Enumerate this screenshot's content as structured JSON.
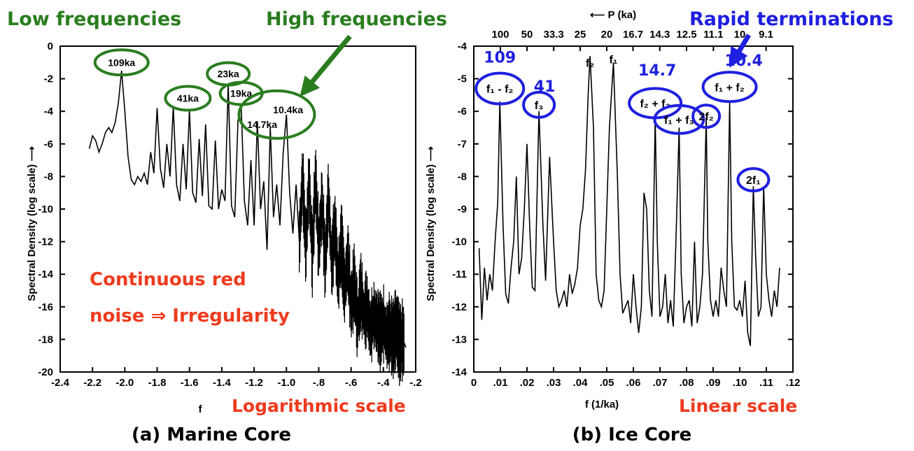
{
  "annotations": {
    "low_frequencies": "Low frequencies",
    "high_frequencies": "High frequencies",
    "rapid_terminations": "Rapid terminations",
    "continuous_red_1": "Continuous red",
    "continuous_red_2": "noise ⇒ Irregularity",
    "log_scale": "Logarithmic scale",
    "linear_scale": "Linear scale",
    "caption_a": "(a) Marine Core",
    "caption_b": "(b) Ice Core",
    "colors": {
      "green": "#2a7d1f",
      "blue": "#1f1fe0",
      "red": "#ee3b1e"
    }
  },
  "chart_data": [
    {
      "type": "line",
      "xlabel": "f",
      "ylabel": "Spectral Density (log scale) ⟶",
      "xlim": [
        -2.4,
        -0.2
      ],
      "ylim": [
        -20,
        0
      ],
      "x_ticks": [
        "-2.4",
        "-2.2",
        "-2.0",
        "-1.8",
        "-1.6",
        "-1.4",
        "-1.2",
        "-1.0",
        "-.8",
        "-.6",
        "-.4",
        "-.2"
      ],
      "y_ticks": [
        "0",
        "-2",
        "-4",
        "-6",
        "-8",
        "-10",
        "-12",
        "-14",
        "-16",
        "-18",
        "-20"
      ],
      "peak_labels": [
        {
          "text": "109ka",
          "x": -2.02,
          "y": -1.5
        },
        {
          "text": "41ka",
          "x": -1.61,
          "y": -3.9
        },
        {
          "text": "23ka",
          "x": -1.36,
          "y": -2.3
        },
        {
          "text": "19ka",
          "x": -1.28,
          "y": -3.6
        },
        {
          "text": "14.7ka",
          "x": -1.15,
          "y": -4.6
        },
        {
          "text": "10.4ka",
          "x": -0.99,
          "y": -4.0
        }
      ],
      "x": [
        -2.22,
        -2.2,
        -2.18,
        -2.16,
        -2.14,
        -2.12,
        -2.1,
        -2.08,
        -2.06,
        -2.04,
        -2.02,
        -2.0,
        -1.98,
        -1.96,
        -1.94,
        -1.92,
        -1.9,
        -1.88,
        -1.86,
        -1.84,
        -1.82,
        -1.8,
        -1.78,
        -1.76,
        -1.74,
        -1.72,
        -1.7,
        -1.68,
        -1.66,
        -1.64,
        -1.62,
        -1.6,
        -1.58,
        -1.56,
        -1.54,
        -1.52,
        -1.5,
        -1.48,
        -1.46,
        -1.44,
        -1.42,
        -1.4,
        -1.38,
        -1.36,
        -1.34,
        -1.32,
        -1.3,
        -1.28,
        -1.26,
        -1.24,
        -1.22,
        -1.2,
        -1.18,
        -1.16,
        -1.14,
        -1.12,
        -1.1,
        -1.08,
        -1.06,
        -1.04,
        -1.02,
        -1.0,
        -0.98,
        -0.96,
        -0.94,
        -0.92,
        -0.9,
        -0.88,
        -0.86,
        -0.84,
        -0.82,
        -0.8,
        -0.78,
        -0.76,
        -0.74,
        -0.72,
        -0.7,
        -0.68,
        -0.66,
        -0.64,
        -0.62,
        -0.6,
        -0.58,
        -0.56,
        -0.54,
        -0.52,
        -0.5,
        -0.48,
        -0.46,
        -0.44,
        -0.42,
        -0.4,
        -0.38,
        -0.36,
        -0.34,
        -0.32,
        -0.3,
        -0.28,
        -0.26
      ],
      "y": [
        -6.3,
        -5.5,
        -5.8,
        -6.5,
        -6.0,
        -5.3,
        -5.0,
        -5.3,
        -4.7,
        -3.5,
        -1.5,
        -4.0,
        -6.8,
        -8.2,
        -8.5,
        -8.0,
        -8.3,
        -7.8,
        -8.5,
        -6.5,
        -7.8,
        -3.8,
        -7.5,
        -8.7,
        -6.0,
        -8.0,
        -3.7,
        -8.5,
        -9.5,
        -6.0,
        -8.8,
        -3.9,
        -9.0,
        -9.6,
        -5.7,
        -9.2,
        -4.8,
        -9.8,
        -10.0,
        -5.8,
        -10.0,
        -8.8,
        -9.5,
        -2.3,
        -9.8,
        -10.5,
        -4.6,
        -3.6,
        -9.5,
        -11.0,
        -7.0,
        -11.0,
        -4.6,
        -10.0,
        -8.3,
        -12.5,
        -5.0,
        -10.5,
        -8.5,
        -11.0,
        -6.5,
        -4.2,
        -9.0,
        -11.5,
        -8.5,
        -12.0,
        -8.0,
        -12.5,
        -8.2,
        -13.0,
        -8.0,
        -12.5,
        -9.5,
        -13.5,
        -9.0,
        -13.5,
        -11.0,
        -14.5,
        -12.0,
        -15.0,
        -13.0,
        -16.0,
        -14.5,
        -17.0,
        -15.0,
        -16.5,
        -16.0,
        -17.5,
        -16.5,
        -17.0,
        -17.5,
        -17.0,
        -17.8,
        -17.5,
        -18.0,
        -17.2,
        -18.3,
        -18.0,
        -18.5
      ]
    },
    {
      "type": "line",
      "xlabel": "f (1/ka)",
      "ylabel": "Spectral Density (log scale) ⟶",
      "top_axis_label": "⟵ P (ka)",
      "xlim": [
        0,
        0.12
      ],
      "ylim": [
        -14,
        -4
      ],
      "x_ticks": [
        "0",
        ".01",
        ".02",
        ".03",
        ".04",
        ".05",
        ".06",
        ".07",
        ".08",
        ".09",
        ".10",
        ".11",
        ".12"
      ],
      "y_ticks": [
        "-4",
        "-5",
        "-6",
        "-7",
        "-8",
        "-9",
        "-10",
        "-11",
        "-12",
        "-13",
        "-14"
      ],
      "top_ticks": [
        "100",
        "50",
        "33.3",
        "25",
        "20",
        "16.7",
        "14.3",
        "12.5",
        "11.1",
        "10",
        "9.1"
      ],
      "peak_labels": [
        {
          "text": "f₁ - f₂",
          "x": 0.0098,
          "y": -5.4
        },
        {
          "text": "f₃",
          "x": 0.0245,
          "y": -5.9
        },
        {
          "text": "f₂",
          "x": 0.0437,
          "y": -4.3
        },
        {
          "text": "f₁",
          "x": 0.0525,
          "y": -4.4
        },
        {
          "text": "f₂ + f₃",
          "x": 0.0682,
          "y": -5.8
        },
        {
          "text": "f₁ + f₃",
          "x": 0.0772,
          "y": -6.3
        },
        {
          "text": "2f₂",
          "x": 0.0874,
          "y": -6.2
        },
        {
          "text": "f₁ + f₂",
          "x": 0.0962,
          "y": -5.3
        },
        {
          "text": "2f₁",
          "x": 0.1051,
          "y": -8.2
        }
      ],
      "blue_numbers": [
        {
          "text": "109",
          "x": 0.0098
        },
        {
          "text": "41",
          "x": 0.0245
        },
        {
          "text": "14.7",
          "x": 0.0682
        },
        {
          "text": "10.4",
          "x": 0.0962
        }
      ],
      "x": [
        0.002,
        0.003,
        0.004,
        0.005,
        0.006,
        0.007,
        0.008,
        0.009,
        0.0098,
        0.011,
        0.012,
        0.013,
        0.014,
        0.015,
        0.016,
        0.017,
        0.018,
        0.019,
        0.02,
        0.021,
        0.022,
        0.023,
        0.0245,
        0.026,
        0.027,
        0.0285,
        0.03,
        0.031,
        0.032,
        0.033,
        0.034,
        0.035,
        0.036,
        0.037,
        0.038,
        0.039,
        0.04,
        0.041,
        0.042,
        0.043,
        0.0437,
        0.045,
        0.046,
        0.047,
        0.048,
        0.049,
        0.05,
        0.051,
        0.0525,
        0.054,
        0.055,
        0.056,
        0.057,
        0.058,
        0.059,
        0.06,
        0.061,
        0.062,
        0.063,
        0.064,
        0.065,
        0.066,
        0.067,
        0.0682,
        0.069,
        0.07,
        0.071,
        0.072,
        0.073,
        0.074,
        0.075,
        0.076,
        0.0772,
        0.078,
        0.079,
        0.08,
        0.081,
        0.082,
        0.083,
        0.084,
        0.085,
        0.086,
        0.0874,
        0.088,
        0.089,
        0.09,
        0.091,
        0.092,
        0.093,
        0.094,
        0.095,
        0.0962,
        0.097,
        0.098,
        0.099,
        0.1,
        0.101,
        0.102,
        0.103,
        0.104,
        0.1051,
        0.106,
        0.107,
        0.108,
        0.109,
        0.11,
        0.111,
        0.112,
        0.113,
        0.114,
        0.115
      ],
      "y": [
        -10.2,
        -12.4,
        -10.8,
        -11.8,
        -11.0,
        -11.5,
        -10.0,
        -8.8,
        -5.7,
        -9.5,
        -11.6,
        -11.9,
        -10.8,
        -10.0,
        -8.0,
        -11.0,
        -10.5,
        -9.0,
        -7.0,
        -9.5,
        -11.4,
        -11.5,
        -6.0,
        -9.5,
        -11.2,
        -7.4,
        -10.0,
        -11.5,
        -12.0,
        -11.8,
        -11.5,
        -12.0,
        -11.0,
        -11.6,
        -11.3,
        -10.8,
        -9.5,
        -9.0,
        -7.8,
        -5.5,
        -4.3,
        -6.5,
        -11.0,
        -11.8,
        -12.0,
        -11.5,
        -9.0,
        -6.5,
        -4.5,
        -8.0,
        -11.0,
        -12.2,
        -12.0,
        -11.8,
        -12.5,
        -11.0,
        -12.0,
        -12.8,
        -12.0,
        -8.5,
        -9.0,
        -11.5,
        -12.3,
        -6.2,
        -10.0,
        -12.3,
        -12.0,
        -11.0,
        -12.5,
        -11.8,
        -12.6,
        -10.0,
        -6.5,
        -11.0,
        -12.5,
        -12.0,
        -11.8,
        -12.6,
        -10.0,
        -12.5,
        -12.0,
        -11.0,
        -6.2,
        -10.0,
        -11.8,
        -12.3,
        -11.8,
        -12.3,
        -10.8,
        -11.5,
        -12.0,
        -5.7,
        -10.0,
        -12.0,
        -12.1,
        -11.8,
        -12.3,
        -11.2,
        -12.8,
        -13.2,
        -8.3,
        -10.5,
        -12.3,
        -12.0,
        -8.3,
        -11.0,
        -11.8,
        -12.3,
        -11.5,
        -12.0,
        -10.8
      ]
    }
  ]
}
